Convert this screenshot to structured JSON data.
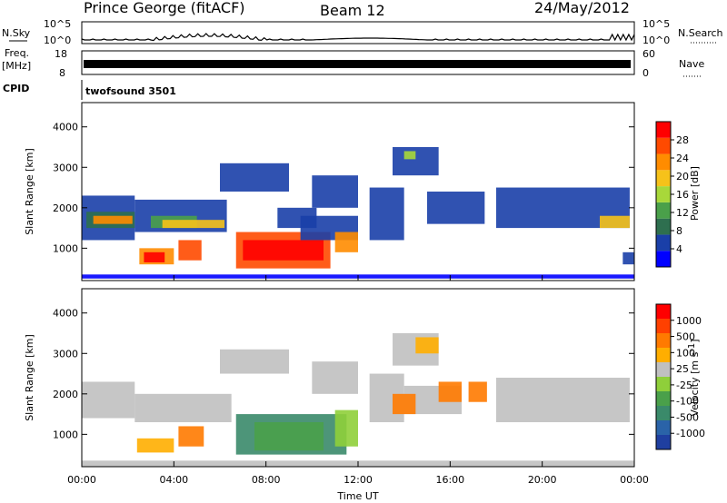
{
  "header": {
    "station": "Prince George (fitACF)",
    "beam": "Beam 12",
    "date": "24/May/2012"
  },
  "top_panels": {
    "nsky_label": "N.Sky",
    "nsky_ticks": [
      "10^5",
      "10^0"
    ],
    "nsearch_label": "N.Search",
    "nsearch_ticks": [
      "10^5",
      "10^0"
    ],
    "freq_label": "Freq.",
    "freq_unit": "[MHz]",
    "freq_ticks": [
      "18",
      "8"
    ],
    "nave_label": "Nave",
    "nave_ticks": [
      "60",
      "0"
    ],
    "cpid_label": "CPID",
    "cpid_value": "twofsound 3501"
  },
  "chart_data": [
    {
      "type": "heatmap",
      "name": "power",
      "ylabel": "Slant Range [km]",
      "yticks": [
        "4000",
        "3000",
        "2000",
        "1000"
      ],
      "ylim": [
        200,
        4600
      ],
      "colorbar_label": "Power [dB]",
      "colorbar_ticks": [
        "28",
        "24",
        "20",
        "16",
        "12",
        "8",
        "4"
      ],
      "colorbar_colors": [
        "#0000ff",
        "#1a3fa8",
        "#2e6f4f",
        "#4aa04a",
        "#a8d83a",
        "#f6c21a",
        "#ff8c00",
        "#ff4a00",
        "#ff0000"
      ]
    },
    {
      "type": "heatmap",
      "name": "velocity",
      "ylabel": "Slant Range [km]",
      "yticks": [
        "4000",
        "3000",
        "2000",
        "1000"
      ],
      "ylim": [
        200,
        4600
      ],
      "colorbar_label": "Velocity [m s",
      "colorbar_label_sup": "-1",
      "colorbar_label_end": "]",
      "colorbar_ticks": [
        "1000",
        "500",
        "100",
        "25",
        "-25",
        "-100",
        "-500",
        "-1000"
      ],
      "colorbar_colors": [
        "#1f3fa0",
        "#2a63a8",
        "#3a8a6a",
        "#4aa04a",
        "#8fcf3a",
        "#c0c0c0",
        "#ffae00",
        "#ff7a00",
        "#ff4000",
        "#ff0000"
      ]
    }
  ],
  "xaxis": {
    "ticks": [
      "00:00",
      "04:00",
      "08:00",
      "12:00",
      "16:00",
      "20:00",
      "00:00"
    ],
    "label": "Time UT"
  }
}
